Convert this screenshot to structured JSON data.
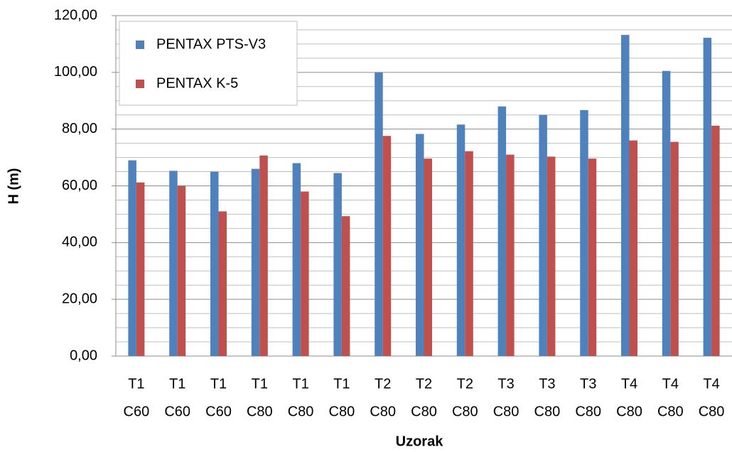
{
  "chart_data": {
    "type": "bar",
    "y_label": "H (m)",
    "x_label": "Uzorak",
    "categories": [
      [
        "T1",
        "C60"
      ],
      [
        "T1",
        "C60"
      ],
      [
        "T1",
        "C60"
      ],
      [
        "T1",
        "C80"
      ],
      [
        "T1",
        "C80"
      ],
      [
        "T1",
        "C80"
      ],
      [
        "T2",
        "C80"
      ],
      [
        "T2",
        "C80"
      ],
      [
        "T2",
        "C80"
      ],
      [
        "T3",
        "C80"
      ],
      [
        "T3",
        "C80"
      ],
      [
        "T3",
        "C80"
      ],
      [
        "T4",
        "C80"
      ],
      [
        "T4",
        "C80"
      ],
      [
        "T4",
        "C80"
      ]
    ],
    "series": [
      {
        "name": "PENTAX PTS-V3",
        "color": "#4f81bd",
        "values": [
          69,
          65.3,
          65,
          66,
          68,
          64.5,
          100,
          78.3,
          81.6,
          88,
          85,
          86.7,
          113.2,
          100.5,
          112.2
        ]
      },
      {
        "name": "PENTAX K-5",
        "color": "#c0504d",
        "values": [
          61.2,
          60,
          51,
          70.7,
          58,
          49.3,
          77.6,
          69.6,
          72.2,
          71,
          70.3,
          69.6,
          76,
          75.5,
          81.2
        ]
      }
    ],
    "ylim": [
      0,
      120
    ],
    "yticks": [
      {
        "value": 0,
        "label": "0,00"
      },
      {
        "value": 20,
        "label": "20,00"
      },
      {
        "value": 40,
        "label": "40,00"
      },
      {
        "value": 60,
        "label": "60,00"
      },
      {
        "value": 80,
        "label": "80,00"
      },
      {
        "value": 100,
        "label": "100,00"
      },
      {
        "value": 120,
        "label": "120,00"
      }
    ],
    "yminorticks": [
      5,
      10,
      15,
      25,
      30,
      35,
      45,
      50,
      55,
      65,
      70,
      75,
      85,
      90,
      95,
      105,
      110,
      115
    ],
    "grid": true,
    "legend": "upper left"
  }
}
